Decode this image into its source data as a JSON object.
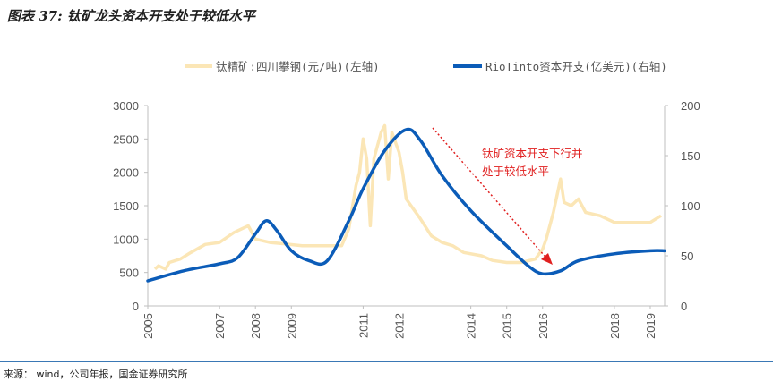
{
  "page": {
    "title": "图表 37:  钛矿龙头资本开支处于较低水平",
    "source": "来源： wind，公司年报，国金证券研究所"
  },
  "chart_data": {
    "type": "line",
    "left_ylim": [
      0,
      3000
    ],
    "right_ylim": [
      0,
      200
    ],
    "left_ticks": [
      "0",
      "500",
      "1000",
      "1500",
      "2000",
      "2500",
      "3000"
    ],
    "right_ticks": [
      "0",
      "50",
      "100",
      "150",
      "200"
    ],
    "x_ticks": [
      "2005",
      "2007",
      "2008",
      "2009",
      "2011",
      "2012",
      "2014",
      "2015",
      "2016",
      "2018",
      "2019"
    ],
    "x_tick_values": [
      2005.0,
      2007.0,
      2008.0,
      2009.0,
      2011.0,
      2012.0,
      2014.0,
      2015.0,
      2016.0,
      2018.0,
      2019.0
    ],
    "xlim": [
      2005.0,
      2019.4
    ],
    "legend": {
      "left_series": "钛精矿:四川攀钢(元/吨)(左轴)",
      "right_series": "RioTinto资本开支(亿美元)(右轴)"
    },
    "annotation": [
      "钛矿资本开支下行并",
      "处于较低水平"
    ],
    "colors": {
      "left_series": "#fbe6b6",
      "right_series": "#0b5cb8",
      "annotation": "#e02020"
    },
    "series": [
      {
        "name": "钛精矿:四川攀钢(元/吨)(左轴)",
        "axis": "left",
        "points": [
          [
            2005.2,
            550
          ],
          [
            2005.3,
            600
          ],
          [
            2005.5,
            550
          ],
          [
            2005.6,
            650
          ],
          [
            2005.9,
            700
          ],
          [
            2006.2,
            800
          ],
          [
            2006.6,
            920
          ],
          [
            2007.0,
            950
          ],
          [
            2007.4,
            1100
          ],
          [
            2007.8,
            1200
          ],
          [
            2008.0,
            1000
          ],
          [
            2008.4,
            950
          ],
          [
            2008.8,
            930
          ],
          [
            2009.3,
            900
          ],
          [
            2010.0,
            900
          ],
          [
            2010.4,
            900
          ],
          [
            2010.6,
            1150
          ],
          [
            2010.8,
            1800
          ],
          [
            2010.9,
            2000
          ],
          [
            2011.0,
            2500
          ],
          [
            2011.1,
            2200
          ],
          [
            2011.2,
            1200
          ],
          [
            2011.3,
            2200
          ],
          [
            2011.5,
            2600
          ],
          [
            2011.6,
            2700
          ],
          [
            2011.7,
            1900
          ],
          [
            2011.8,
            2600
          ],
          [
            2012.0,
            2300
          ],
          [
            2012.1,
            2000
          ],
          [
            2012.2,
            1600
          ],
          [
            2012.4,
            1450
          ],
          [
            2012.6,
            1300
          ],
          [
            2012.9,
            1050
          ],
          [
            2013.2,
            950
          ],
          [
            2013.5,
            900
          ],
          [
            2013.8,
            800
          ],
          [
            2014.3,
            750
          ],
          [
            2014.6,
            680
          ],
          [
            2015.0,
            650
          ],
          [
            2015.4,
            650
          ],
          [
            2015.8,
            700
          ],
          [
            2016.0,
            850
          ],
          [
            2016.1,
            1000
          ],
          [
            2016.3,
            1400
          ],
          [
            2016.5,
            1900
          ],
          [
            2016.6,
            1550
          ],
          [
            2016.8,
            1500
          ],
          [
            2017.0,
            1600
          ],
          [
            2017.2,
            1400
          ],
          [
            2017.6,
            1350
          ],
          [
            2018.0,
            1250
          ],
          [
            2018.5,
            1250
          ],
          [
            2019.0,
            1250
          ],
          [
            2019.3,
            1350
          ]
        ]
      },
      {
        "name": "RioTinto资本开支(亿美元)(右轴)",
        "axis": "right",
        "points": [
          [
            2005.0,
            25
          ],
          [
            2006.0,
            35
          ],
          [
            2007.0,
            42
          ],
          [
            2007.5,
            48
          ],
          [
            2008.0,
            72
          ],
          [
            2008.3,
            85
          ],
          [
            2008.6,
            75
          ],
          [
            2009.0,
            55
          ],
          [
            2009.5,
            45
          ],
          [
            2010.0,
            45
          ],
          [
            2010.6,
            85
          ],
          [
            2011.0,
            117
          ],
          [
            2011.6,
            155
          ],
          [
            2012.2,
            176
          ],
          [
            2012.6,
            165
          ],
          [
            2013.2,
            130
          ],
          [
            2014.0,
            95
          ],
          [
            2015.0,
            60
          ],
          [
            2015.6,
            40
          ],
          [
            2016.0,
            32
          ],
          [
            2016.5,
            35
          ],
          [
            2017.0,
            45
          ],
          [
            2018.0,
            52
          ],
          [
            2019.0,
            55
          ],
          [
            2019.4,
            55
          ]
        ]
      }
    ]
  }
}
